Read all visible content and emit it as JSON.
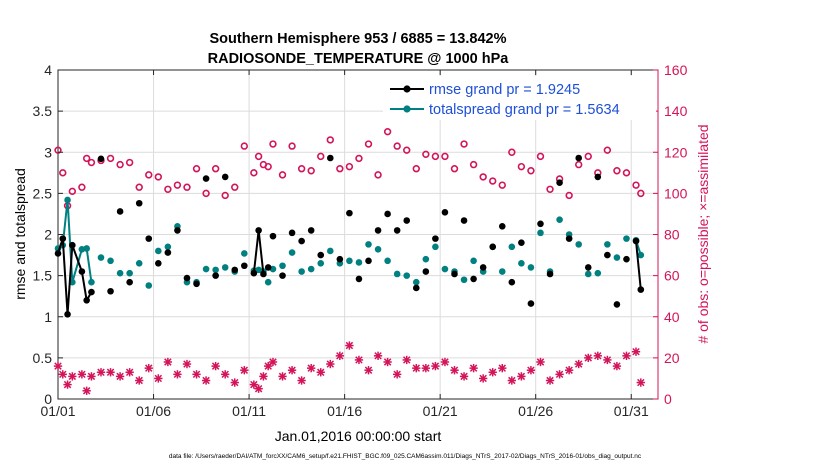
{
  "chart_data": {
    "type": "scatter",
    "title": "Southern Hemisphere 953 / 6885 = 13.842%",
    "subtitle": "RADIOSONDE_TEMPERATURE @ 1000 hPa",
    "xlabel": "Jan.01,2016 00:00:00 start",
    "ylabel_left": "rmse and totalspread",
    "ylabel_right": "# of obs: o=possible; ×=assimilated",
    "x_unit": "days since start",
    "xlim": [
      0,
      31.4
    ],
    "ylim_left": [
      0,
      4
    ],
    "ylim_right": [
      0,
      160
    ],
    "x_ticks": [
      {
        "pos": 0,
        "label": "01/01"
      },
      {
        "pos": 5,
        "label": "01/06"
      },
      {
        "pos": 10,
        "label": "01/11"
      },
      {
        "pos": 15,
        "label": "01/16"
      },
      {
        "pos": 20,
        "label": "01/21"
      },
      {
        "pos": 25,
        "label": "01/26"
      },
      {
        "pos": 30,
        "label": "01/31"
      }
    ],
    "y_left_ticks": [
      "0",
      "0.5",
      "1",
      "1.5",
      "2",
      "2.5",
      "3",
      "3.5",
      "4"
    ],
    "y_right_ticks": [
      "0",
      "20",
      "40",
      "60",
      "80",
      "100",
      "120",
      "140",
      "160"
    ],
    "grid": true,
    "legend_position": "top-right",
    "footer": "data file: /Users/raeder/DAI/ATM_forcXX/CAM6_setup/f.e21.FHIST_BGC.f09_025.CAM6assim.011/Diags_NTrS_2017-02/Diags_NTrS_2016-01/obs_diag_output.nc",
    "colors": {
      "rmse": "#000000",
      "spread": "#008080",
      "obs": "#d4145a",
      "legend_text": "#1d4fd8"
    },
    "series": [
      {
        "name": "rmse grand pr = 1.9245",
        "axis": "left",
        "x": [
          0.0,
          0.25,
          0.5,
          0.75,
          1.25,
          1.5,
          1.75,
          2.25,
          2.75,
          3.25,
          3.75,
          4.25,
          4.75,
          5.25,
          5.75,
          6.25,
          6.75,
          7.25,
          7.75,
          8.25,
          8.75,
          9.25,
          9.75,
          10.25,
          10.5,
          10.75,
          11.0,
          11.25,
          11.75,
          12.25,
          12.75,
          13.25,
          13.75,
          14.25,
          14.75,
          15.25,
          15.75,
          16.25,
          16.75,
          17.25,
          17.75,
          18.25,
          18.75,
          19.25,
          19.75,
          20.25,
          20.75,
          21.25,
          21.75,
          22.25,
          22.75,
          23.25,
          23.75,
          24.25,
          24.75,
          25.25,
          25.75,
          26.25,
          26.75,
          27.25,
          27.75,
          28.25,
          28.75,
          29.25,
          29.75,
          30.25,
          30.5
        ],
        "y": [
          1.77,
          1.95,
          1.03,
          1.87,
          1.55,
          1.2,
          1.3,
          2.92,
          1.31,
          2.28,
          1.42,
          2.38,
          1.95,
          1.65,
          1.78,
          2.05,
          1.47,
          1.4,
          2.68,
          1.5,
          2.7,
          1.57,
          1.62,
          1.53,
          2.05,
          1.52,
          1.6,
          1.98,
          1.5,
          2.02,
          1.92,
          2.05,
          1.75,
          2.93,
          1.7,
          2.26,
          1.46,
          1.68,
          2.05,
          2.25,
          2.05,
          2.17,
          1.35,
          1.55,
          1.95,
          2.27,
          1.52,
          2.17,
          1.46,
          1.6,
          1.85,
          2.1,
          1.42,
          1.9,
          1.16,
          2.13,
          1.52,
          2.63,
          1.95,
          2.93,
          1.6,
          2.7,
          1.75,
          1.15,
          1.7,
          1.92,
          1.33
        ]
      },
      {
        "name": "totalspread grand pr = 1.5634",
        "axis": "left",
        "x": [
          0.0,
          0.25,
          0.5,
          0.75,
          1.25,
          1.5,
          1.75,
          2.25,
          2.75,
          3.25,
          3.75,
          4.25,
          4.75,
          5.25,
          5.75,
          6.25,
          6.75,
          7.25,
          7.75,
          8.25,
          8.75,
          9.25,
          9.75,
          10.25,
          10.5,
          10.75,
          11.0,
          11.25,
          11.75,
          12.25,
          12.75,
          13.25,
          13.75,
          14.25,
          14.75,
          15.25,
          15.75,
          16.25,
          16.75,
          17.25,
          17.75,
          18.25,
          18.75,
          19.25,
          19.75,
          20.25,
          20.75,
          21.25,
          21.75,
          22.25,
          22.75,
          23.25,
          23.75,
          24.25,
          24.75,
          25.25,
          25.75,
          26.25,
          26.75,
          27.25,
          27.75,
          28.25,
          28.75,
          29.25,
          29.75,
          30.25,
          30.5
        ],
        "y": [
          1.83,
          1.87,
          2.42,
          1.42,
          1.82,
          1.83,
          1.42,
          1.72,
          1.68,
          1.53,
          1.53,
          1.65,
          1.38,
          1.8,
          1.85,
          2.1,
          1.42,
          1.42,
          1.58,
          1.57,
          1.6,
          1.55,
          1.77,
          1.56,
          1.57,
          1.55,
          1.42,
          1.58,
          1.62,
          1.78,
          1.55,
          1.58,
          1.65,
          1.8,
          1.65,
          1.68,
          1.66,
          1.88,
          1.82,
          1.68,
          1.52,
          1.5,
          1.42,
          1.7,
          1.85,
          1.58,
          1.55,
          1.45,
          1.68,
          1.55,
          1.85,
          1.55,
          1.85,
          1.65,
          1.6,
          2.02,
          1.55,
          2.18,
          2.0,
          1.88,
          1.52,
          1.53,
          1.88,
          1.72,
          1.95,
          1.93,
          1.75
        ]
      },
      {
        "name": "possible",
        "axis": "right",
        "x": [
          0.0,
          0.25,
          0.5,
          0.75,
          1.25,
          1.5,
          1.75,
          2.25,
          2.75,
          3.25,
          3.75,
          4.25,
          4.75,
          5.25,
          5.75,
          6.25,
          6.75,
          7.25,
          7.75,
          8.25,
          8.75,
          9.25,
          9.75,
          10.25,
          10.5,
          10.75,
          11.0,
          11.25,
          11.75,
          12.25,
          12.75,
          13.25,
          13.75,
          14.25,
          14.75,
          15.25,
          15.75,
          16.25,
          16.75,
          17.25,
          17.75,
          18.25,
          18.75,
          19.25,
          19.75,
          20.25,
          20.75,
          21.25,
          21.75,
          22.25,
          22.75,
          23.25,
          23.75,
          24.25,
          24.75,
          25.25,
          25.75,
          26.25,
          26.75,
          27.25,
          27.75,
          28.25,
          28.75,
          29.25,
          29.75,
          30.25,
          30.5
        ],
        "y": [
          121,
          110,
          94,
          101,
          103,
          117,
          115,
          116,
          117,
          114,
          115,
          103,
          109,
          108,
          102,
          104,
          103,
          112,
          100,
          112,
          99,
          103,
          123,
          110,
          118,
          114,
          113,
          124,
          109,
          123,
          112,
          111,
          118,
          126,
          112,
          113,
          117,
          124,
          109,
          130,
          123,
          121,
          112,
          119,
          118,
          118,
          112,
          124,
          114,
          108,
          106,
          104,
          120,
          113,
          111,
          118,
          102,
          107,
          99,
          114,
          118,
          110,
          121,
          111,
          110,
          104,
          100
        ]
      },
      {
        "name": "assimilated",
        "axis": "right",
        "x": [
          0.0,
          0.25,
          0.5,
          0.75,
          1.25,
          1.5,
          1.75,
          2.25,
          2.75,
          3.25,
          3.75,
          4.25,
          4.75,
          5.25,
          5.75,
          6.25,
          6.75,
          7.25,
          7.75,
          8.25,
          8.75,
          9.25,
          9.75,
          10.25,
          10.5,
          10.75,
          11.0,
          11.25,
          11.75,
          12.25,
          12.75,
          13.25,
          13.75,
          14.25,
          14.75,
          15.25,
          15.75,
          16.25,
          16.75,
          17.25,
          17.75,
          18.25,
          18.75,
          19.25,
          19.75,
          20.25,
          20.75,
          21.25,
          21.75,
          22.25,
          22.75,
          23.25,
          23.75,
          24.25,
          24.75,
          25.25,
          25.75,
          26.25,
          26.75,
          27.25,
          27.75,
          28.25,
          28.75,
          29.25,
          29.75,
          30.25,
          30.5
        ],
        "y": [
          16,
          12,
          7,
          11,
          12,
          4,
          11,
          13,
          13,
          11,
          13,
          9,
          15,
          10,
          18,
          12,
          17,
          12,
          9,
          16,
          12,
          8,
          14,
          7,
          5,
          11,
          16,
          18,
          11,
          14,
          9,
          15,
          13,
          17,
          21,
          26,
          19,
          14,
          21,
          18,
          12,
          19,
          15,
          15,
          16,
          18,
          14,
          11,
          15,
          10,
          13,
          15,
          9,
          11,
          14,
          18,
          9,
          12,
          14,
          17,
          20,
          21,
          19,
          16,
          21,
          23,
          8
        ]
      }
    ]
  }
}
